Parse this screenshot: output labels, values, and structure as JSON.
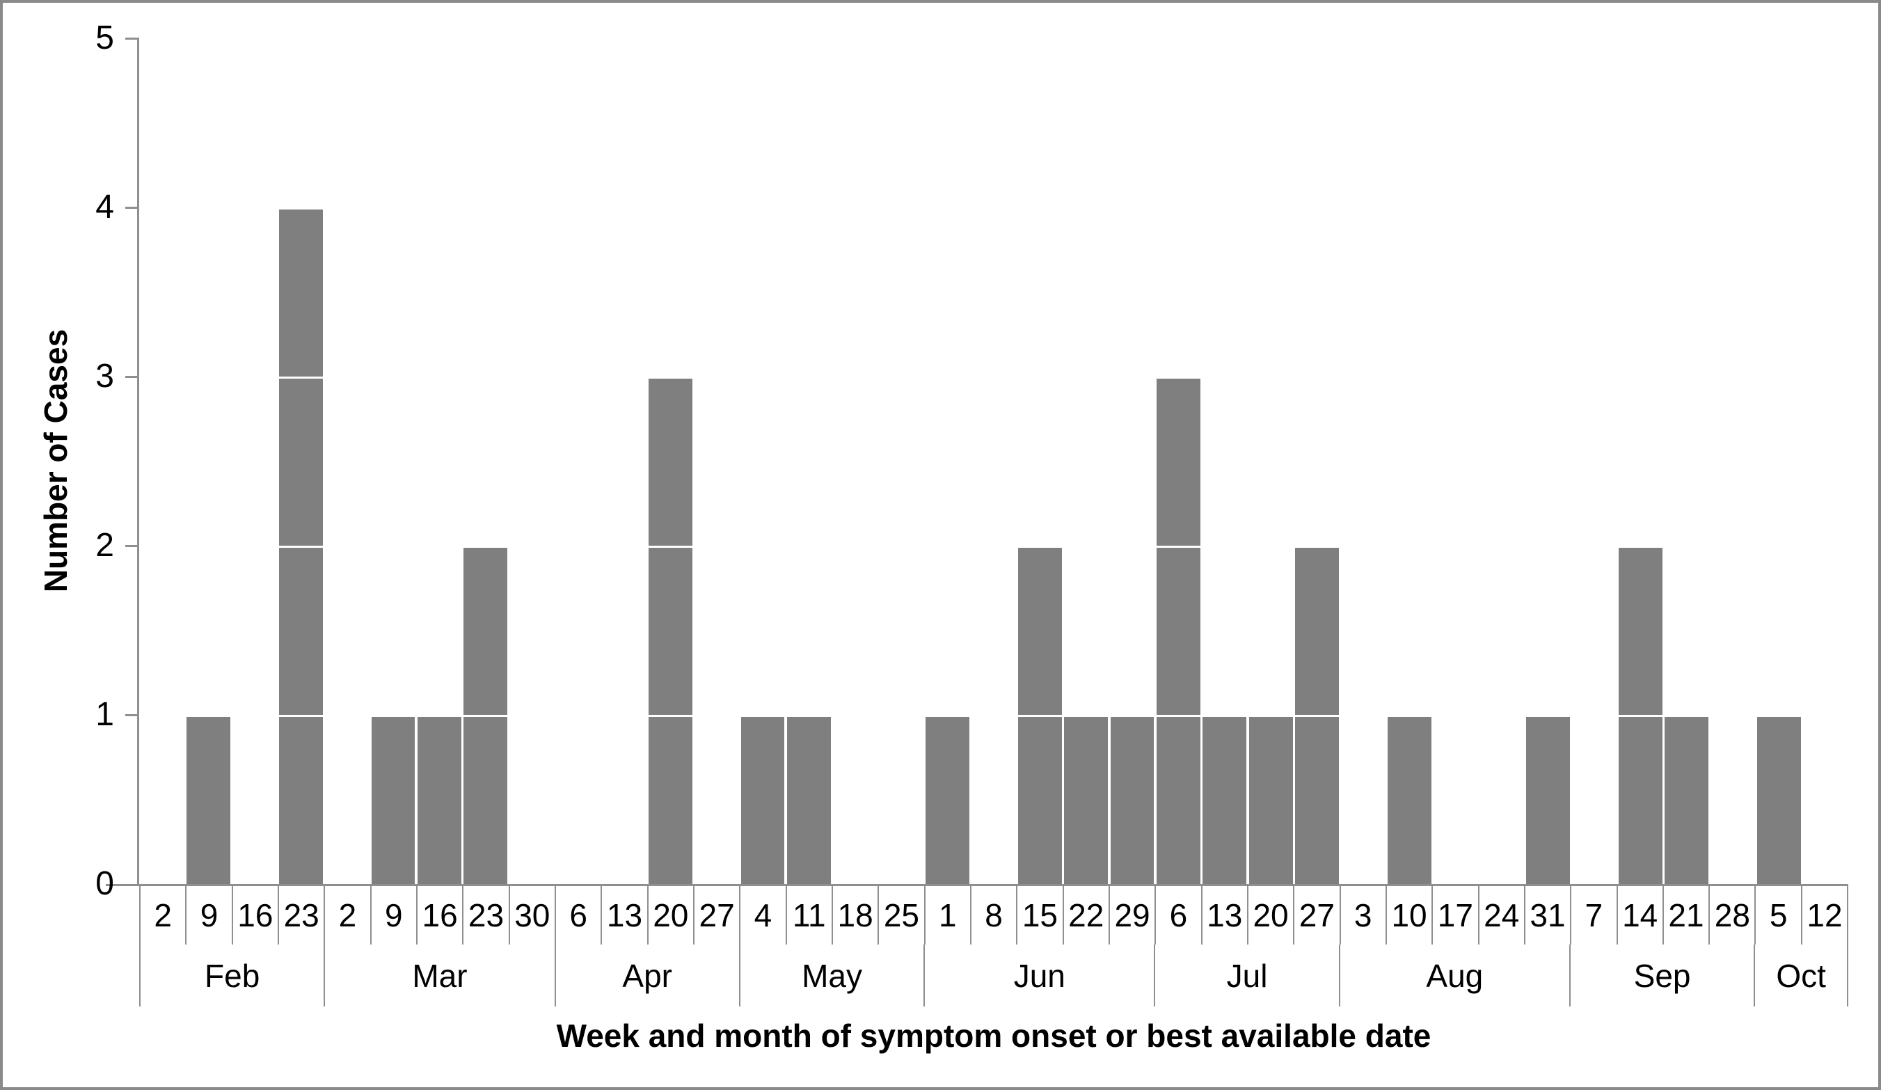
{
  "frame": {
    "border_color": "#8a8a8a",
    "background_color": "#ffffff"
  },
  "chart_data": {
    "type": "bar",
    "title": "",
    "xlabel": "Week and month of symptom onset or best available date",
    "ylabel": "Number of Cases",
    "ylim": [
      0,
      5
    ],
    "yticks": [
      "0",
      "1",
      "2",
      "3",
      "4",
      "5"
    ],
    "grid": false,
    "legend": false,
    "bar_color": "#7f7f7f",
    "axis_color": "#8f8f8f",
    "unit_separator_color": "#ffffff",
    "bar_style": "stacked-unit-blocks (one block per case)",
    "months": [
      {
        "label": "Feb",
        "weeks": [
          "2",
          "9",
          "16",
          "23"
        ],
        "values": [
          0,
          1,
          0,
          4
        ]
      },
      {
        "label": "Mar",
        "weeks": [
          "2",
          "9",
          "16",
          "23",
          "30"
        ],
        "values": [
          0,
          1,
          1,
          2,
          0
        ]
      },
      {
        "label": "Apr",
        "weeks": [
          "6",
          "13",
          "20",
          "27"
        ],
        "values": [
          0,
          0,
          3,
          0
        ]
      },
      {
        "label": "May",
        "weeks": [
          "4",
          "11",
          "18",
          "25"
        ],
        "values": [
          1,
          1,
          0,
          0
        ]
      },
      {
        "label": "Jun",
        "weeks": [
          "1",
          "8",
          "15",
          "22",
          "29"
        ],
        "values": [
          1,
          0,
          2,
          1,
          1
        ]
      },
      {
        "label": "Jul",
        "weeks": [
          "6",
          "13",
          "20",
          "27"
        ],
        "values": [
          3,
          1,
          1,
          2
        ]
      },
      {
        "label": "Aug",
        "weeks": [
          "3",
          "10",
          "17",
          "24",
          "31"
        ],
        "values": [
          0,
          1,
          0,
          0,
          1
        ]
      },
      {
        "label": "Sep",
        "weeks": [
          "7",
          "14",
          "21",
          "28"
        ],
        "values": [
          0,
          2,
          1,
          0
        ]
      },
      {
        "label": "Oct",
        "weeks": [
          "5",
          "12"
        ],
        "values": [
          1,
          0
        ]
      }
    ]
  }
}
